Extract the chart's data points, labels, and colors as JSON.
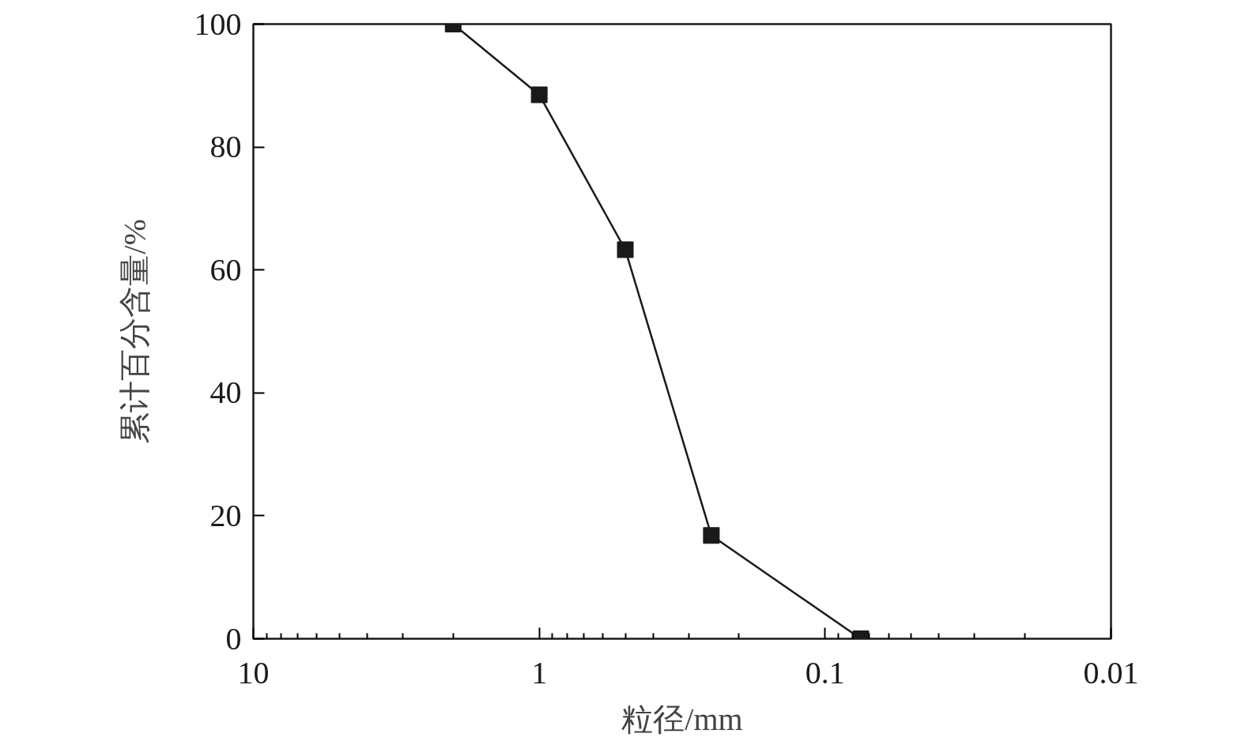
{
  "chart_data": {
    "type": "line",
    "xlabel": "粒径/mm",
    "ylabel": "累计百分含量/%",
    "log": "x",
    "xlim": [
      10,
      0.01
    ],
    "xticks": [
      10,
      1,
      0.1,
      0.01
    ],
    "ylim": [
      0,
      100
    ],
    "yticks": [
      0,
      20,
      40,
      60,
      80,
      100
    ],
    "grid": false,
    "marker": "square",
    "line_style": "solid",
    "x": [
      2,
      1,
      0.5,
      0.25,
      0.075
    ],
    "series": [
      {
        "color": "#1a1a1a",
        "values": [
          100,
          88.5,
          63.3,
          16.8,
          0
        ]
      }
    ]
  }
}
